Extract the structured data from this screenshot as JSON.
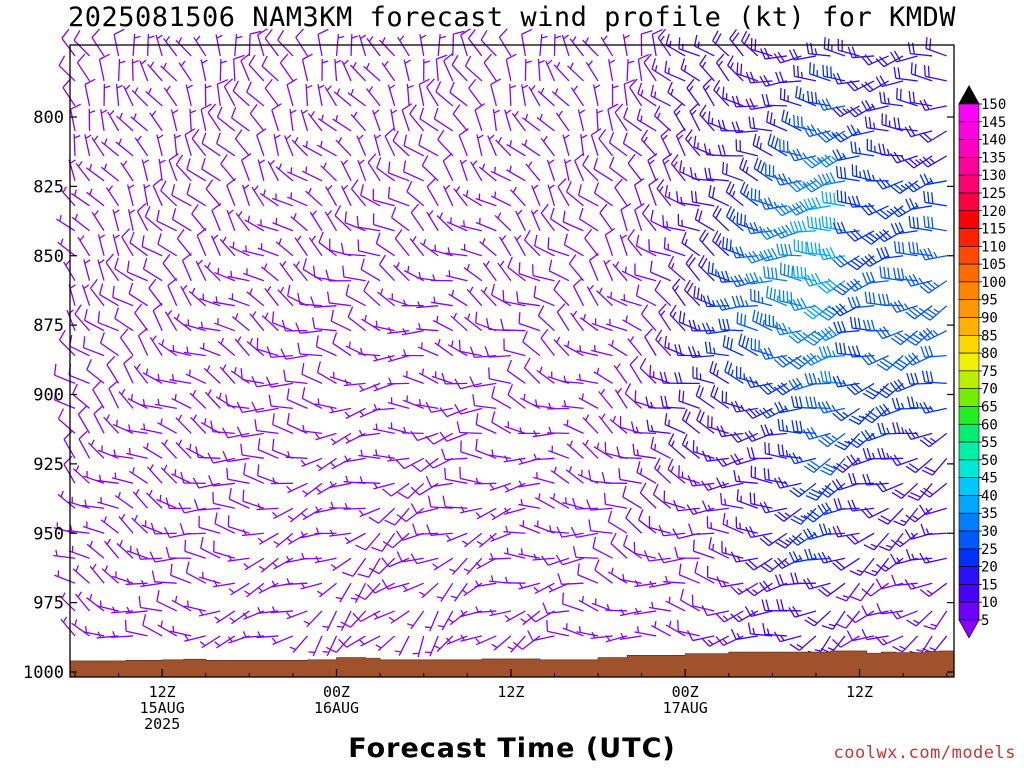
{
  "title": "2025081506 NAM3KM forecast wind profile (kt) for KMDW",
  "xlabel": "Forecast Time (UTC)",
  "credit": "coolwx.com/models",
  "chart_data": {
    "type": "wind_barb_time_height",
    "title": "2025081506 NAM3KM forecast wind profile (kt) for KMDW",
    "xlabel": "Forecast Time (UTC)",
    "ylabel": "",
    "y_axis": {
      "unit": "hPa",
      "range": [
        1000,
        778
      ],
      "ticks": [
        800,
        825,
        850,
        875,
        900,
        925,
        950,
        975,
        1000
      ],
      "inverted": true
    },
    "x_axis": {
      "start": "2025-08-15 06Z",
      "end": "2025-08-17 18Z",
      "step_hours": 1,
      "ticks": [
        {
          "hour": 6,
          "lines": [
            "12Z",
            "15AUG",
            "2025"
          ]
        },
        {
          "hour": 18,
          "lines": [
            "00Z",
            "16AUG"
          ]
        },
        {
          "hour": 30,
          "lines": [
            "12Z"
          ]
        },
        {
          "hour": 42,
          "lines": [
            "00Z",
            "17AUG"
          ]
        },
        {
          "hour": 54,
          "lines": [
            "12Z"
          ]
        }
      ]
    },
    "colorbar": {
      "levels": [
        5,
        10,
        15,
        20,
        25,
        30,
        35,
        40,
        45,
        50,
        55,
        60,
        65,
        70,
        75,
        80,
        85,
        90,
        95,
        100,
        105,
        110,
        115,
        120,
        125,
        130,
        135,
        140,
        145,
        150
      ],
      "colors": [
        "#8a00ff",
        "#6f00ff",
        "#4800ff",
        "#2a10ff",
        "#0030ff",
        "#0058ff",
        "#0080ff",
        "#00a8ff",
        "#00c8ff",
        "#00e8d8",
        "#00f0a8",
        "#00f070",
        "#20f020",
        "#70f000",
        "#b8f000",
        "#f0f000",
        "#ffd700",
        "#ffb000",
        "#ff9800",
        "#ff8400",
        "#ff6a00",
        "#ff4800",
        "#ff2000",
        "#ff0000",
        "#ff0040",
        "#ff0070",
        "#ff0098",
        "#ff00c0",
        "#ff00e0",
        "#ff00ff"
      ]
    },
    "terrain": {
      "color": "#a0522d",
      "note_label": "",
      "surface_pressure_hpa": [
        [
          0,
          996.0
        ],
        [
          1.5,
          996.0
        ],
        [
          3.5,
          995.8
        ],
        [
          6,
          995.6
        ],
        [
          7.5,
          995.4
        ],
        [
          9,
          995.8
        ],
        [
          16,
          995.6
        ],
        [
          18,
          994.8
        ],
        [
          20,
          995.0
        ],
        [
          21,
          995.6
        ],
        [
          26,
          995.6
        ],
        [
          28,
          995.3
        ],
        [
          32,
          995.6
        ],
        [
          36,
          994.8
        ],
        [
          38,
          994.0
        ],
        [
          42,
          993.4
        ],
        [
          45,
          992.8
        ],
        [
          52,
          992.4
        ],
        [
          54.5,
          993.2
        ],
        [
          55.5,
          992.8
        ],
        [
          56.5,
          993.0
        ],
        [
          58.5,
          992.6
        ],
        [
          59.5,
          992.4
        ],
        [
          60.5,
          992.8
        ],
        [
          60.5,
          992.8
        ]
      ]
    },
    "barbs": {
      "pressure_levels": [
        778,
        787,
        796,
        805,
        814,
        823,
        832,
        841,
        850,
        859,
        868,
        877,
        886,
        896,
        905,
        914,
        923,
        932,
        941,
        950,
        959,
        968,
        978,
        987,
        996
      ],
      "time_hours": [
        0,
        1,
        2,
        3,
        4,
        5,
        6,
        7,
        8,
        9,
        10,
        11,
        12,
        13,
        14,
        15,
        16,
        17,
        18,
        19,
        20,
        21,
        22,
        23,
        24,
        25,
        26,
        27,
        28,
        29,
        30,
        31,
        32,
        33,
        34,
        35,
        36,
        37,
        38,
        39,
        40,
        41,
        42,
        43,
        44,
        45,
        46,
        47,
        48,
        49,
        50,
        51,
        52,
        53,
        54,
        55,
        56,
        57,
        58,
        59,
        60
      ],
      "wind_field": {
        "direction_deg": "varies: ~330 aloft early, backing to ~200 in low levels, veering to ~250-300 late",
        "speed_kt": "5-15 kt through 16AUG; 20-45 kt on 17AUG, peak ~50 kt near 850 hPa at ~17AUG 09Z"
      }
    }
  }
}
